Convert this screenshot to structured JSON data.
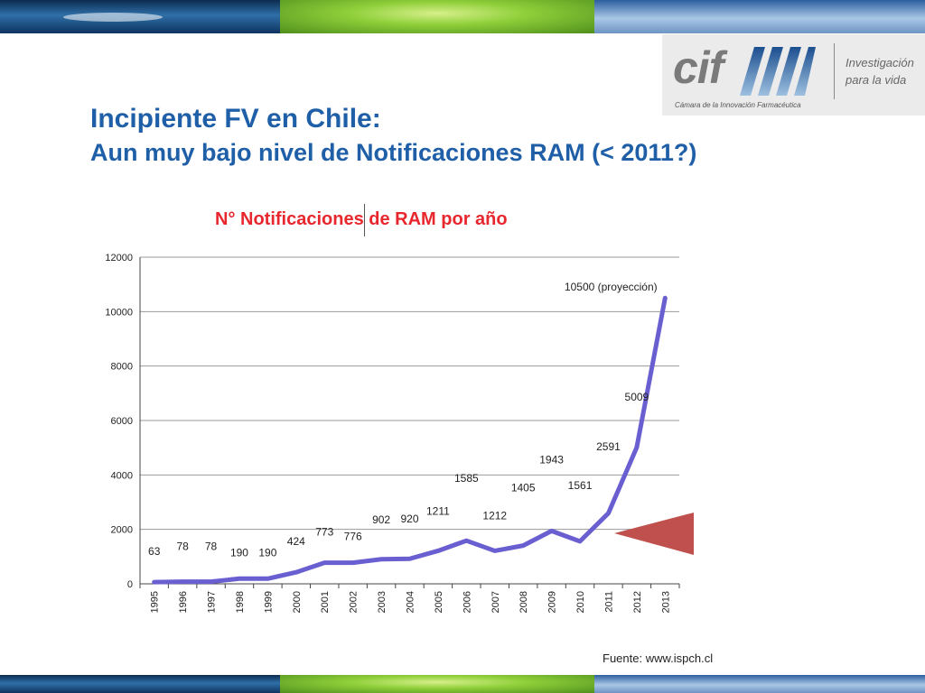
{
  "slide": {
    "title": "Incipiente FV en Chile:",
    "subtitle": "Aun muy bajo nivel de Notificaciones RAM (< 2011?)",
    "source": "Fuente: www.ispch.cl"
  },
  "logo": {
    "name": "cif",
    "tagline_1": "Investigación",
    "tagline_2": "para la vida",
    "subtitle": "Cámara de la Innovación Farmacéutica"
  },
  "colors": {
    "title": "#1f5fa8",
    "chart_title": "#e8262d",
    "line": "#6a5fd1",
    "arrow": "#c0504d"
  },
  "chart_data": {
    "type": "line",
    "title": "N° Notificaciones de RAM por año",
    "xlabel": "",
    "ylabel": "",
    "categories": [
      "1995",
      "1996",
      "1997",
      "1998",
      "1999",
      "2000",
      "2001",
      "2002",
      "2003",
      "2004",
      "2005",
      "2006",
      "2007",
      "2008",
      "2009",
      "2010",
      "2011",
      "2012",
      "2013"
    ],
    "series": [
      {
        "values": [
          63,
          78,
          78,
          190,
          190,
          424,
          773,
          776,
          902,
          920,
          1211,
          1585,
          1212,
          1405,
          1943,
          1561,
          2591,
          5009,
          10500
        ]
      }
    ],
    "data_labels": [
      "63",
      "78",
      "78",
      "190",
      "190",
      "424",
      "773",
      "776",
      "902",
      "920",
      "1211",
      "1585",
      "1212",
      "1405",
      "1943",
      "1561",
      "2591",
      "5009",
      "10500 (proyección)"
    ],
    "ylim": [
      0,
      12000
    ],
    "yticks": [
      0,
      2000,
      4000,
      6000,
      8000,
      10000,
      12000
    ],
    "grid": true,
    "legend": "none"
  }
}
